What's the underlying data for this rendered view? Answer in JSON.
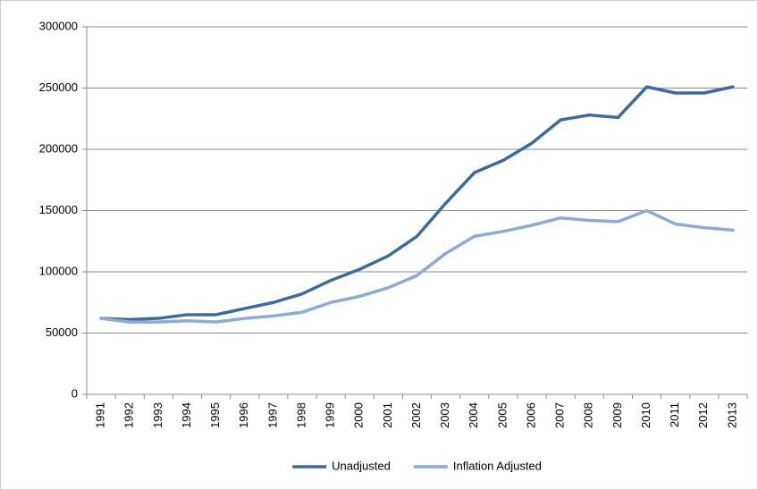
{
  "chart_data": {
    "type": "line",
    "categories": [
      "1991",
      "1992",
      "1993",
      "1994",
      "1995",
      "1996",
      "1997",
      "1998",
      "1999",
      "2000",
      "2001",
      "2002",
      "2003",
      "2004",
      "2005",
      "2006",
      "2007",
      "2008",
      "2009",
      "2010",
      "2011",
      "2012",
      "2013"
    ],
    "series": [
      {
        "name": "Unadjusted",
        "color": "#3e6b9f",
        "values": [
          62000,
          61000,
          62000,
          65000,
          65000,
          70000,
          75000,
          82000,
          93000,
          102000,
          113000,
          129000,
          156000,
          181000,
          191000,
          205000,
          224000,
          228000,
          226000,
          251000,
          246000,
          246000,
          251000
        ]
      },
      {
        "name": "Inflation Adjusted",
        "color": "#8eaad5",
        "values": [
          62000,
          59000,
          59000,
          60000,
          59000,
          62000,
          64000,
          67000,
          75000,
          80000,
          87000,
          97000,
          115000,
          129000,
          133000,
          138000,
          144000,
          142000,
          141000,
          150000,
          139000,
          136000,
          134000
        ]
      }
    ],
    "ylim": [
      0,
      300000
    ],
    "yticks": [
      0,
      50000,
      100000,
      150000,
      200000,
      250000,
      300000
    ],
    "grid": true,
    "legend": "bottom"
  }
}
